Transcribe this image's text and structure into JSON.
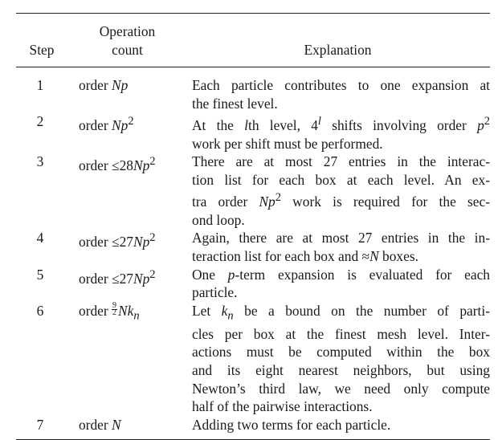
{
  "header": {
    "step": "Step",
    "operation_line1": "Operation",
    "operation_line2": "count",
    "explanation": "Explanation"
  },
  "rows": [
    {
      "step": "1",
      "op_html": "order <i>Np</i>",
      "lines": [
        "Each particle contributes to one expansion at",
        "the finest level."
      ]
    },
    {
      "step": "2",
      "op_html": "order <i>Np</i><sup>2</sup>",
      "lines": [
        "At the <i>l</i>th level, 4<sup><i>l</i></sup> shifts involving order <i>p</i><sup>2</sup>",
        "work per shift must be performed."
      ]
    },
    {
      "step": "3",
      "op_html": "order ≤28<i>Np</i><sup>2</sup>",
      "lines": [
        "There are at most 27 entries in the interac-",
        "tion list for each box at each level. An ex-",
        "tra order <i>Np</i><sup>2</sup> work is required for the sec-",
        "ond loop."
      ]
    },
    {
      "step": "4",
      "op_html": "order ≤27<i>Np</i><sup>2</sup>",
      "lines": [
        "Again, there are at most 27 entries in the in-",
        "teraction list for each box and ≈<i>N</i> boxes."
      ]
    },
    {
      "step": "5",
      "op_html": "order ≤27<i>Np</i><sup>2</sup>",
      "lines": [
        "One <i>p</i>-term expansion is evaluated for each",
        "particle."
      ]
    },
    {
      "step": "6",
      "op_html": "order <span class=\"frac\"><span class=\"num\">9</span><span class=\"den\">2</span></span><i>Nk<sub>n</sub></i>",
      "lines": [
        "Let <i>k<sub>n</sub></i> be a bound on the number of parti-",
        "cles per box at the finest mesh level. Inter-",
        "actions must be computed within the box",
        "and its eight nearest neighbors, but using",
        "Newton’s third law, we need only compute",
        "half of the pairwise interactions."
      ]
    },
    {
      "step": "7",
      "op_html": "order <i>N</i>",
      "lines": [
        "Adding two terms for each particle."
      ]
    }
  ]
}
